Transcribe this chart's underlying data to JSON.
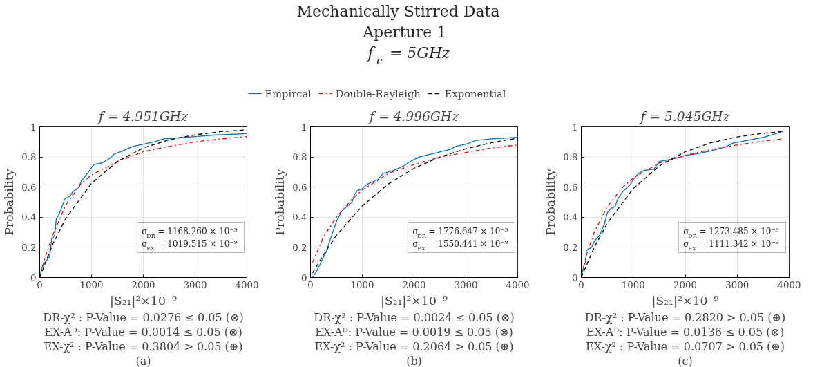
{
  "chart_data": [
    {
      "type": "line",
      "title": "f = 4.951GHz",
      "xlabel": "|S₂₁|²×10⁻⁹",
      "ylabel": "Probability",
      "xlim": [
        0,
        4000
      ],
      "ylim": [
        0,
        1
      ],
      "xticks": [
        0,
        1000,
        2000,
        3000,
        4000
      ],
      "yticks": [
        0,
        0.2,
        0.4,
        0.6,
        0.8,
        1
      ],
      "grid": true,
      "legend": "top",
      "annotations": [
        "Mechanically Stirred Data",
        "Aperture 1",
        "f$_{c}$ = 5GHz",
        "σ$_{DR}$ = 1168.260 × 10⁻⁹",
        "σ$_{EX}$ = 1019.515 × 10⁻⁹",
        "DR-χ² : P-Value = 0.0276 ≤ 0.05 (⊗)",
        "EX-Aᴰ: P-Value = 0.0014 ≤ 0.05 (⊗)",
        "EX-χ² : P-Value = 0.3804 > 0.05 (⊕)",
        "(a)"
      ],
      "series": [
        {
          "name": "Empircal",
          "color": "#0072bd",
          "line_style": "solid",
          "x": [
            0,
            54,
            190,
            230,
            290,
            320,
            360,
            420,
            480,
            580,
            640,
            760,
            800,
            920,
            1000,
            1050,
            1200,
            1350,
            1440,
            1600,
            1800,
            2000,
            2200,
            2400,
            3000,
            3350,
            4000
          ],
          "values": [
            0,
            0.08,
            0.14,
            0.25,
            0.28,
            0.39,
            0.41,
            0.46,
            0.52,
            0.54,
            0.57,
            0.6,
            0.64,
            0.69,
            0.73,
            0.75,
            0.76,
            0.79,
            0.82,
            0.84,
            0.87,
            0.885,
            0.9,
            0.92,
            0.935,
            0.945,
            0.955
          ]
        },
        {
          "name": "Double-Rayleigh",
          "color": "#ff0000",
          "line_style": "dashdot",
          "x": [
            0,
            100,
            250,
            500,
            800,
            1000,
            1500,
            2000,
            2500,
            3000,
            3500,
            4000
          ],
          "values": [
            0,
            0.13,
            0.28,
            0.48,
            0.625,
            0.68,
            0.77,
            0.835,
            0.87,
            0.9,
            0.92,
            0.935
          ]
        },
        {
          "name": "Exponential",
          "color": "#000000",
          "line_style": "dashed",
          "x": [
            0,
            250,
            500,
            1000,
            1500,
            2000,
            2500,
            3000,
            3500,
            4000
          ],
          "values": [
            0,
            0.22,
            0.39,
            0.625,
            0.77,
            0.86,
            0.914,
            0.947,
            0.968,
            0.98
          ]
        }
      ]
    },
    {
      "type": "line",
      "title": "f = 4.996GHz",
      "xlabel": "|S₂₁|²×10⁻⁹",
      "ylabel": "Probability",
      "xlim": [
        0,
        4000
      ],
      "ylim": [
        0,
        1
      ],
      "xticks": [
        0,
        1000,
        2000,
        3000,
        4000
      ],
      "yticks": [
        0,
        0.2,
        0.4,
        0.6,
        0.8,
        1
      ],
      "grid": true,
      "annotations": [
        "σ$_{DR}$ = 1776.647 × 10⁻⁹",
        "σ$_{EX}$ = 1550.441 × 10⁻⁹",
        "DR-χ² : P-Value = 0.0024 ≤ 0.05 (⊗)",
        "EX-Aᴰ: P-Value = 0.0019 ≤ 0.05 (⊗)",
        "EX-χ² : P-Value = 0.2064 > 0.05 (⊕)",
        "(b)"
      ],
      "series": [
        {
          "color": "#0072bd",
          "line_style": "solid",
          "x": [
            40,
            100,
            200,
            300,
            400,
            500,
            600,
            700,
            800,
            850,
            900,
            1000,
            1100,
            1300,
            1400,
            1600,
            1800,
            1900,
            2100,
            2400,
            2700,
            2800,
            3000,
            3200,
            3500,
            4000
          ],
          "values": [
            0,
            0.03,
            0.1,
            0.17,
            0.27,
            0.37,
            0.44,
            0.47,
            0.5,
            0.55,
            0.575,
            0.59,
            0.62,
            0.65,
            0.69,
            0.71,
            0.74,
            0.765,
            0.8,
            0.825,
            0.85,
            0.87,
            0.885,
            0.91,
            0.92,
            0.93
          ]
        },
        {
          "color": "#ff0000",
          "line_style": "dashdot",
          "x": [
            40,
            250,
            500,
            800,
            1000,
            1500,
            2000,
            2500,
            3000,
            3500,
            4000
          ],
          "values": [
            0.1,
            0.27,
            0.4,
            0.52,
            0.58,
            0.69,
            0.75,
            0.8,
            0.83,
            0.86,
            0.88
          ]
        },
        {
          "color": "#000000",
          "line_style": "dashed",
          "x": [
            40,
            250,
            500,
            1000,
            1500,
            2000,
            2500,
            3000,
            3500,
            4000
          ],
          "values": [
            0.03,
            0.15,
            0.28,
            0.475,
            0.62,
            0.725,
            0.8,
            0.855,
            0.895,
            0.925
          ]
        }
      ]
    },
    {
      "type": "line",
      "title": "f = 5.045GHz",
      "xlabel": "|S₂₁|²×10⁻⁹",
      "ylabel": "Probability",
      "xlim": [
        0,
        4000
      ],
      "ylim": [
        0,
        1
      ],
      "xticks": [
        0,
        1000,
        2000,
        3000,
        4000
      ],
      "yticks": [
        0,
        0.2,
        0.4,
        0.6,
        0.8,
        1
      ],
      "grid": true,
      "annotations": [
        "σ$_{DR}$ = 1273.485 × 10⁻⁹",
        "σ$_{EX}$ = 1111.342 × 10⁻⁹",
        "DR-χ² : P-Value = 0.2820 > 0.05 (⊕)",
        "EX-Aᴰ: P-Value = 0.0136 ≤ 0.05 (⊗)",
        "EX-χ² : P-Value = 0.0707 > 0.05 (⊕)",
        "(c)"
      ],
      "series": [
        {
          "color": "#0072bd",
          "line_style": "solid",
          "x": [
            0,
            50,
            80,
            100,
            200,
            250,
            350,
            450,
            500,
            580,
            650,
            700,
            800,
            950,
            1000,
            1100,
            1200,
            1400,
            1500,
            1800,
            2000,
            2200,
            2500,
            2800,
            2900,
            3200,
            3500,
            3880
          ],
          "values": [
            0,
            0.08,
            0.1,
            0.18,
            0.2,
            0.24,
            0.28,
            0.36,
            0.43,
            0.46,
            0.47,
            0.52,
            0.57,
            0.62,
            0.65,
            0.69,
            0.71,
            0.72,
            0.77,
            0.79,
            0.81,
            0.82,
            0.84,
            0.87,
            0.89,
            0.91,
            0.93,
            0.97
          ]
        },
        {
          "color": "#ff0000",
          "line_style": "dashdot",
          "x": [
            0,
            100,
            250,
            500,
            800,
            1000,
            1500,
            2000,
            2500,
            3000,
            3500,
            3880
          ],
          "values": [
            0,
            0.15,
            0.3,
            0.47,
            0.6,
            0.66,
            0.76,
            0.81,
            0.85,
            0.88,
            0.905,
            0.92
          ]
        },
        {
          "color": "#000000",
          "line_style": "dashed",
          "x": [
            0,
            250,
            500,
            1000,
            1500,
            2000,
            2500,
            3000,
            3500,
            3880
          ],
          "values": [
            0,
            0.2,
            0.36,
            0.59,
            0.74,
            0.835,
            0.895,
            0.933,
            0.957,
            0.969
          ]
        }
      ]
    }
  ]
}
